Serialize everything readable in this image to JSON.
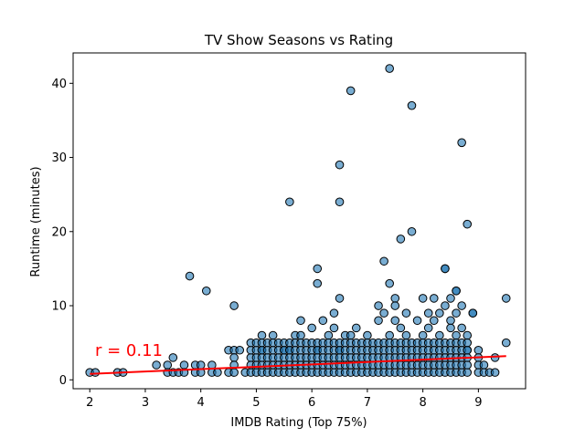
{
  "chart_data": {
    "type": "scatter",
    "title": "TV Show Seasons vs Rating",
    "xlabel": "IMDB Rating (Top 75%)",
    "ylabel": "Runtime (minutes)",
    "xlim": [
      1.7,
      9.85
    ],
    "ylim": [
      -1.2,
      44.1
    ],
    "x_ticks": [
      2,
      3,
      4,
      5,
      6,
      7,
      8,
      9
    ],
    "y_ticks": [
      0,
      10,
      20,
      30,
      40
    ],
    "grid": false,
    "legend": "none",
    "point_color": "#1f77b4",
    "point_edge_color": "#000000",
    "trend_color": "#ff0000",
    "annotation": "r = 0.11",
    "trend_line": {
      "x": [
        2.0,
        9.5
      ],
      "y": [
        0.8,
        3.2
      ]
    },
    "points": [
      [
        7.4,
        42
      ],
      [
        6.7,
        39
      ],
      [
        7.8,
        37
      ],
      [
        8.7,
        32
      ],
      [
        6.5,
        29
      ],
      [
        5.6,
        24
      ],
      [
        6.5,
        24
      ],
      [
        8.8,
        21
      ],
      [
        7.8,
        20
      ],
      [
        7.6,
        19
      ],
      [
        7.3,
        16
      ],
      [
        6.1,
        15
      ],
      [
        8.4,
        15
      ],
      [
        8.4,
        15
      ],
      [
        3.8,
        14
      ],
      [
        6.1,
        13
      ],
      [
        7.4,
        13
      ],
      [
        4.1,
        12
      ],
      [
        8.6,
        12
      ],
      [
        8.6,
        12
      ],
      [
        6.5,
        11
      ],
      [
        7.5,
        11
      ],
      [
        8.0,
        11
      ],
      [
        8.2,
        11
      ],
      [
        8.5,
        11
      ],
      [
        9.5,
        11
      ],
      [
        4.6,
        10
      ],
      [
        7.2,
        10
      ],
      [
        7.5,
        10
      ],
      [
        8.4,
        10
      ],
      [
        8.7,
        10
      ],
      [
        6.4,
        9
      ],
      [
        7.3,
        9
      ],
      [
        7.7,
        9
      ],
      [
        8.1,
        9
      ],
      [
        8.3,
        9
      ],
      [
        8.6,
        9
      ],
      [
        8.9,
        9
      ],
      [
        8.9,
        9
      ],
      [
        5.8,
        8
      ],
      [
        6.2,
        8
      ],
      [
        7.2,
        8
      ],
      [
        7.5,
        8
      ],
      [
        7.9,
        8
      ],
      [
        8.2,
        8
      ],
      [
        8.5,
        8
      ],
      [
        6.0,
        7
      ],
      [
        6.4,
        7
      ],
      [
        6.8,
        7
      ],
      [
        7.6,
        7
      ],
      [
        8.1,
        7
      ],
      [
        8.5,
        7
      ],
      [
        8.7,
        7
      ],
      [
        5.1,
        6
      ],
      [
        5.3,
        6
      ],
      [
        5.7,
        6
      ],
      [
        5.8,
        6
      ],
      [
        6.3,
        6
      ],
      [
        6.6,
        6
      ],
      [
        6.7,
        6
      ],
      [
        7.0,
        6
      ],
      [
        7.4,
        6
      ],
      [
        7.7,
        6
      ],
      [
        8.0,
        6
      ],
      [
        8.3,
        6
      ],
      [
        8.6,
        6
      ],
      [
        8.8,
        6
      ],
      [
        9.5,
        5
      ],
      [
        4.5,
        4
      ],
      [
        4.6,
        4
      ],
      [
        4.7,
        4
      ],
      [
        5.1,
        4
      ],
      [
        5.5,
        4
      ],
      [
        5.6,
        4
      ],
      [
        6.1,
        4
      ],
      [
        6.5,
        4
      ],
      [
        8.8,
        4
      ],
      [
        9.0,
        4
      ],
      [
        3.5,
        3
      ],
      [
        4.6,
        3
      ],
      [
        9.0,
        3
      ],
      [
        9.3,
        3
      ],
      [
        3.2,
        2
      ],
      [
        3.4,
        2
      ],
      [
        3.7,
        2
      ],
      [
        3.9,
        2
      ],
      [
        4.0,
        2
      ],
      [
        4.2,
        2
      ],
      [
        4.6,
        2
      ],
      [
        9.0,
        2
      ],
      [
        9.1,
        2
      ],
      [
        2.0,
        1
      ],
      [
        2.1,
        1
      ],
      [
        2.5,
        1
      ],
      [
        2.6,
        1
      ],
      [
        3.4,
        1
      ],
      [
        3.5,
        1
      ],
      [
        3.6,
        1
      ],
      [
        3.7,
        1
      ],
      [
        3.9,
        1
      ],
      [
        4.0,
        1
      ],
      [
        4.2,
        1
      ],
      [
        4.3,
        1
      ],
      [
        4.5,
        1
      ],
      [
        4.6,
        1
      ],
      [
        4.8,
        1
      ],
      [
        9.0,
        1
      ],
      [
        9.1,
        1
      ],
      [
        9.2,
        1
      ],
      [
        9.3,
        1
      ]
    ],
    "dense_cluster": {
      "x_range": [
        4.9,
        8.8
      ],
      "y_levels": [
        1,
        2,
        3,
        4,
        5
      ],
      "x_step": 0.1
    }
  }
}
